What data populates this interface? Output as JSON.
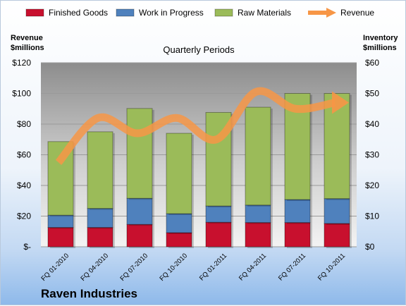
{
  "company": "Raven Industries",
  "chart_data": {
    "type": "bar",
    "stacked": true,
    "title": "Quarterly Periods",
    "categories": [
      "FQ 01-2010",
      "FQ 04-2010",
      "FQ 07-2010",
      "FQ 10-2010",
      "FQ 01-2011",
      "FQ 04-2011",
      "FQ 07-2011",
      "FQ 10-2011"
    ],
    "y_left": {
      "label_line1": "Revenue",
      "label_line2": "$millions",
      "ylim": [
        0,
        120
      ],
      "ticks": [
        "$-",
        "$20",
        "$40",
        "$60",
        "$80",
        "$100",
        "$120"
      ]
    },
    "y_right": {
      "label_line1": "Inventory",
      "label_line2": "$millions",
      "ylim": [
        0,
        60
      ],
      "ticks": [
        "$0",
        "$10",
        "$20",
        "$30",
        "$40",
        "$50",
        "$60"
      ]
    },
    "series": [
      {
        "name": "Finished Goods",
        "axis": "right",
        "color": "#c8102e",
        "values": [
          6.3,
          6.3,
          7.3,
          4.6,
          8.0,
          7.9,
          7.9,
          7.6
        ]
      },
      {
        "name": "Work in Progress",
        "axis": "right",
        "color": "#4f81bd",
        "values": [
          4.0,
          6.2,
          8.5,
          6.2,
          5.3,
          5.7,
          7.5,
          8.1
        ]
      },
      {
        "name": "Raw Materials",
        "axis": "right",
        "color": "#9bbb59",
        "values": [
          24.0,
          25.0,
          29.3,
          26.2,
          30.5,
          31.9,
          34.6,
          34.3
        ]
      },
      {
        "name": "Revenue",
        "axis": "left",
        "type": "line",
        "color": "#f79646",
        "values": [
          55,
          84,
          74,
          84,
          70,
          101,
          90,
          94
        ]
      }
    ],
    "grid": true,
    "legend_position": "top"
  }
}
